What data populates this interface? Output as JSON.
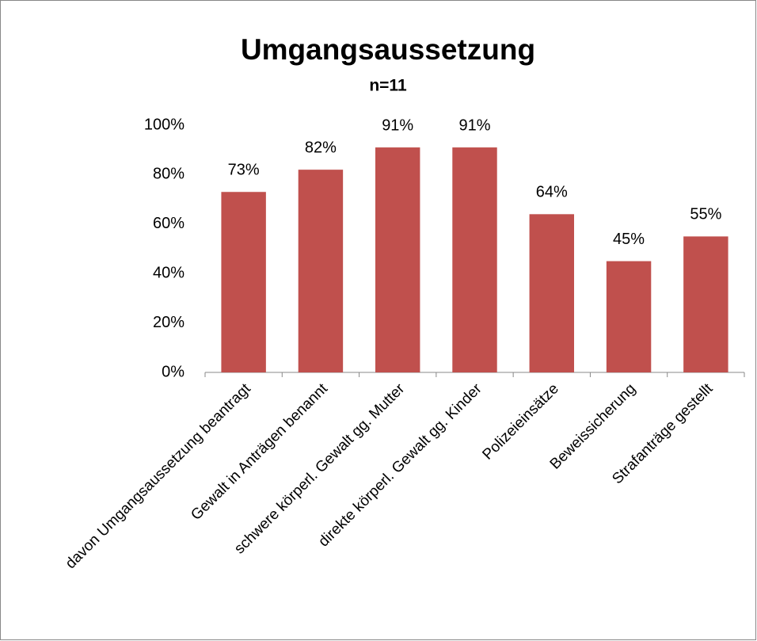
{
  "chart_data": {
    "type": "bar",
    "title": "Umgangsaussetzung",
    "subtitle": "n=11",
    "categories": [
      "davon Umgangsaussetzung beantragt",
      "Gewalt in Anträgen benannt",
      "schwere körperl. Gewalt gg. Mutter",
      "direkte körperl. Gewalt gg. Kinder",
      "Polizeieinsätze",
      "Beweissicherung",
      "Strafanträge gestellt"
    ],
    "values": [
      73,
      82,
      91,
      91,
      64,
      45,
      55
    ],
    "value_labels": [
      "73%",
      "82%",
      "91%",
      "91%",
      "64%",
      "45%",
      "55%"
    ],
    "color": "#c0504d",
    "ylim": [
      0,
      100
    ],
    "yticks": [
      {
        "value": 0,
        "label": "0%"
      },
      {
        "value": 20,
        "label": "20%"
      },
      {
        "value": 40,
        "label": "40%"
      },
      {
        "value": 60,
        "label": "60%"
      },
      {
        "value": 80,
        "label": "80%"
      },
      {
        "value": 100,
        "label": "100%"
      }
    ],
    "grid": false
  }
}
